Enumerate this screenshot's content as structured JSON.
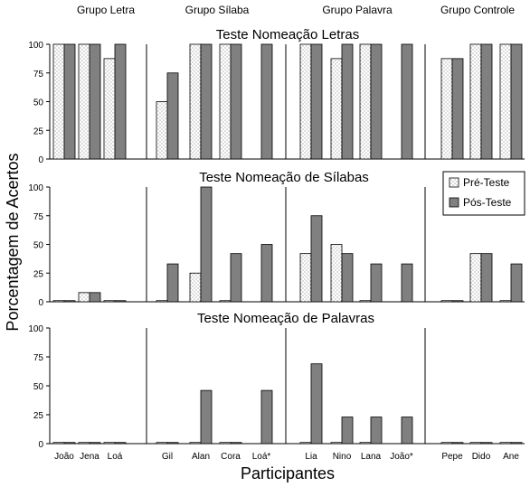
{
  "chart_data": {
    "type": "bar",
    "ylabel": "Porcentagem de Acertos",
    "xlabel": "Participantes",
    "ylim": [
      0,
      100
    ],
    "yticks": [
      "0",
      "25",
      "50",
      "75",
      "100"
    ],
    "legend": {
      "position": "top-right",
      "entries": [
        "Pré-Teste",
        "Pós-Teste"
      ]
    },
    "groups": [
      "Grupo Letra",
      "Grupo Sílaba",
      "Grupo Palavra",
      "Grupo Controle"
    ],
    "participants": [
      "João",
      "Jena",
      "Loá",
      "Gil",
      "Alan",
      "Cora",
      "Loá*",
      "Lia",
      "Nino",
      "Lana",
      "João*",
      "Pepe",
      "Dido",
      "Ane"
    ],
    "panels": [
      {
        "title": "Teste Nomeação Letras",
        "series": [
          {
            "name": "Pré-Teste",
            "values": [
              100,
              100,
              87.5,
              50,
              100,
              100,
              0,
              100,
              87.5,
              100,
              0,
              87.5,
              100,
              100
            ]
          },
          {
            "name": "Pós-Teste",
            "values": [
              100,
              100,
              100,
              75,
              100,
              100,
              100,
              100,
              100,
              100,
              100,
              87.5,
              100,
              100
            ]
          }
        ]
      },
      {
        "title": "Teste Nomeação de Sílabas",
        "series": [
          {
            "name": "Pré-Teste",
            "values": [
              1,
              8,
              1,
              1,
              25,
              1,
              0,
              42,
              50,
              1,
              0,
              1,
              42,
              1
            ]
          },
          {
            "name": "Pós-Teste",
            "values": [
              1,
              8,
              1,
              33,
              100,
              42,
              50,
              75,
              42,
              33,
              33,
              1,
              42,
              33
            ]
          }
        ]
      },
      {
        "title": "Teste Nomeação de Palavras",
        "series": [
          {
            "name": "Pré-Teste",
            "values": [
              1,
              1,
              1,
              1,
              1,
              1,
              0,
              1,
              1,
              1,
              0,
              1,
              1,
              1
            ]
          },
          {
            "name": "Pós-Teste",
            "values": [
              1,
              1,
              1,
              1,
              46,
              1,
              46,
              69,
              23,
              23,
              23,
              1,
              1,
              1
            ]
          }
        ]
      }
    ]
  }
}
